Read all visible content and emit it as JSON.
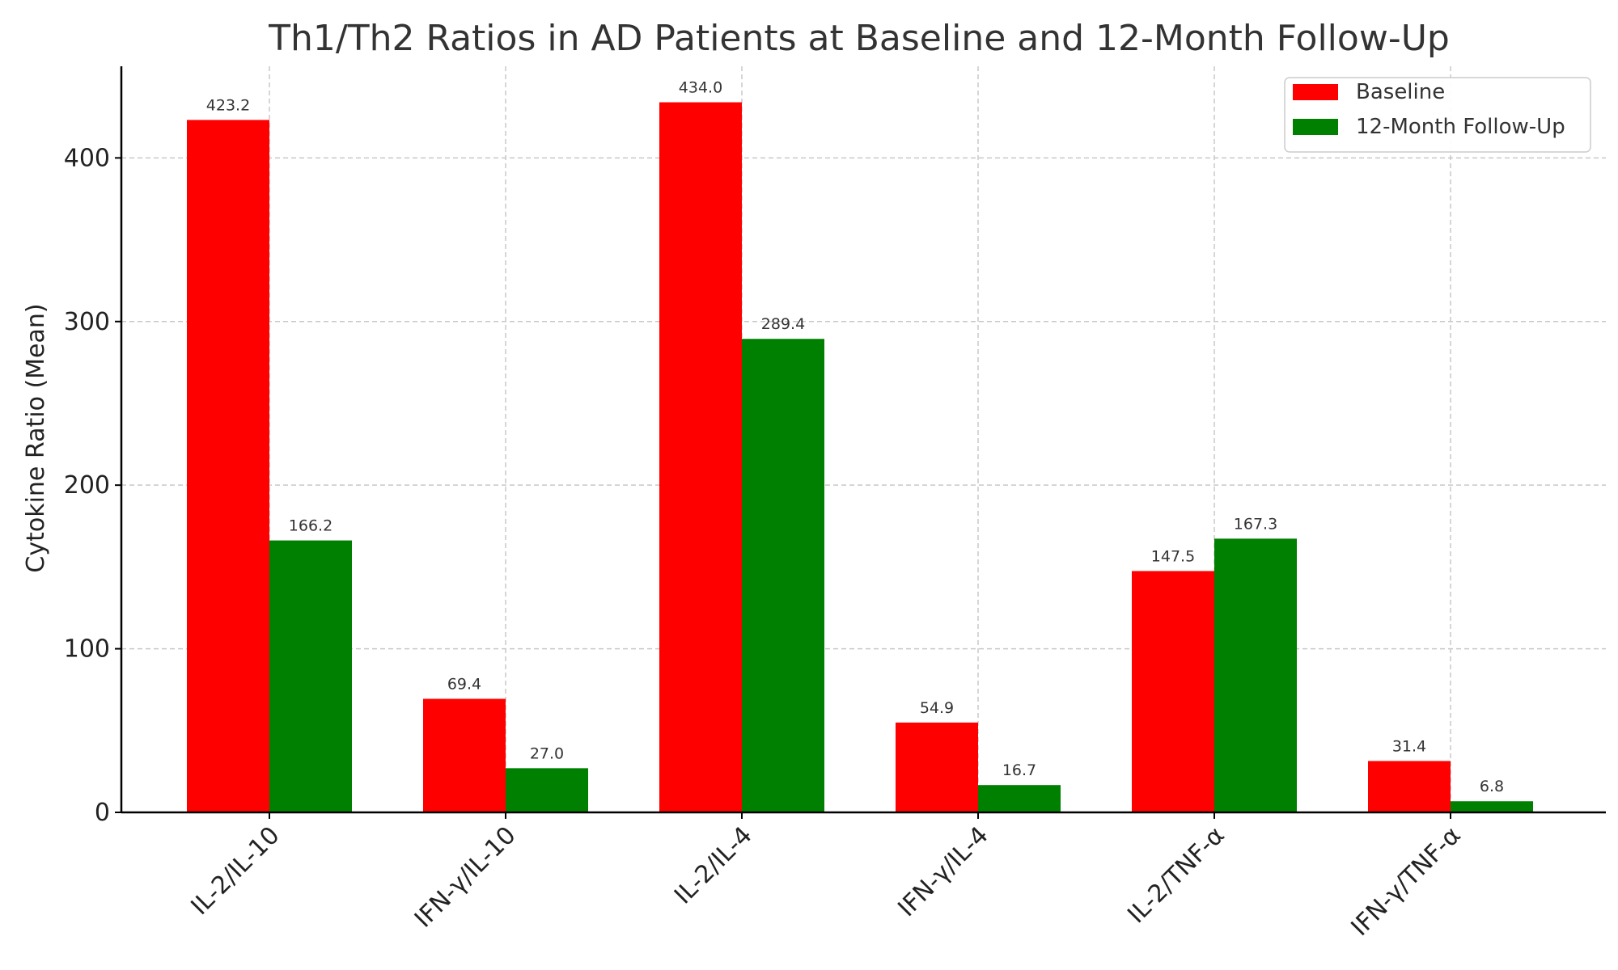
{
  "chart_data": {
    "type": "bar",
    "title": "Th1/Th2 Ratios in AD Patients at Baseline and 12-Month Follow-Up",
    "xlabel": "",
    "ylabel": "Cytokine Ratio (Mean)",
    "categories": [
      "IL-2/IL-10",
      "IFN-γ/IL-10",
      "IL-2/IL-4",
      "IFN-γ/IL-4",
      "IL-2/TNF-α",
      "IFN-γ/TNF-α"
    ],
    "series": [
      {
        "name": "Baseline",
        "color": "#ff0000",
        "values": [
          423.2,
          69.4,
          434.0,
          54.9,
          147.5,
          31.4
        ]
      },
      {
        "name": "12-Month Follow-Up",
        "color": "#008000",
        "values": [
          166.2,
          27.0,
          289.4,
          16.7,
          167.3,
          6.8
        ]
      }
    ],
    "ylim": [
      0,
      456
    ],
    "yticks": [
      0,
      100,
      200,
      300,
      400
    ],
    "grid": true,
    "legend_position": "top-right",
    "data_labels": true
  }
}
